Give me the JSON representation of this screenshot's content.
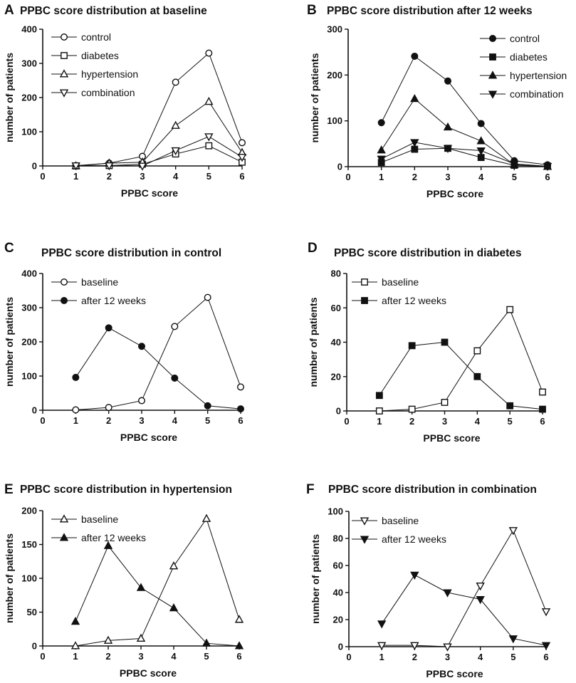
{
  "chart_data": [
    {
      "panel": "A",
      "type": "line",
      "title": "PPBC score distribution at baseline",
      "xlabel": "PPBC score",
      "ylabel": "number of patients",
      "xlim": [
        0,
        6
      ],
      "ylim": [
        0,
        400
      ],
      "xticks": [
        0,
        1,
        2,
        3,
        4,
        5,
        6
      ],
      "yticks": [
        0,
        100,
        200,
        300,
        400
      ],
      "x": [
        1,
        2,
        3,
        4,
        5,
        6
      ],
      "legend_position": "top-left",
      "series": [
        {
          "name": "control",
          "marker": "circle-open",
          "values": [
            1,
            8,
            28,
            245,
            330,
            68
          ]
        },
        {
          "name": "diabetes",
          "marker": "square-open",
          "values": [
            0,
            1,
            5,
            35,
            59,
            11
          ]
        },
        {
          "name": "hypertension",
          "marker": "triangle-up-open",
          "values": [
            0,
            8,
            11,
            118,
            188,
            39
          ]
        },
        {
          "name": "combination",
          "marker": "triangle-down-open",
          "values": [
            1,
            1,
            0,
            45,
            86,
            26
          ]
        }
      ]
    },
    {
      "panel": "B",
      "type": "line",
      "title": "PPBC score distribution after 12 weeks",
      "xlabel": "PPBC score",
      "ylabel": "number of patients",
      "xlim": [
        0,
        6
      ],
      "ylim": [
        0,
        300
      ],
      "xticks": [
        0,
        1,
        2,
        3,
        4,
        5,
        6
      ],
      "yticks": [
        0,
        100,
        200,
        300
      ],
      "x": [
        1,
        2,
        3,
        4,
        5,
        6
      ],
      "legend_position": "top-right",
      "series": [
        {
          "name": "control",
          "marker": "circle-filled",
          "values": [
            96,
            241,
            187,
            94,
            13,
            4
          ]
        },
        {
          "name": "diabetes",
          "marker": "square-filled",
          "values": [
            9,
            38,
            40,
            20,
            3,
            1
          ]
        },
        {
          "name": "hypertension",
          "marker": "triangle-up-filled",
          "values": [
            36,
            148,
            86,
            56,
            4,
            0
          ]
        },
        {
          "name": "combination",
          "marker": "triangle-down-filled",
          "values": [
            17,
            53,
            40,
            35,
            6,
            1
          ]
        }
      ]
    },
    {
      "panel": "C",
      "type": "line",
      "title": "PPBC score distribution in control",
      "xlabel": "PPBC score",
      "ylabel": "number of patients",
      "xlim": [
        0,
        6
      ],
      "ylim": [
        0,
        400
      ],
      "xticks": [
        0,
        1,
        2,
        3,
        4,
        5,
        6
      ],
      "yticks": [
        0,
        100,
        200,
        300,
        400
      ],
      "x": [
        1,
        2,
        3,
        4,
        5,
        6
      ],
      "legend_position": "top-left",
      "series": [
        {
          "name": "baseline",
          "marker": "circle-open",
          "values": [
            1,
            8,
            28,
            245,
            330,
            68
          ]
        },
        {
          "name": "after 12 weeks",
          "marker": "circle-filled",
          "values": [
            96,
            241,
            187,
            94,
            13,
            4
          ]
        }
      ]
    },
    {
      "panel": "D",
      "type": "line",
      "title": "PPBC score distribution in diabetes",
      "xlabel": "PPBC score",
      "ylabel": "number of patients",
      "xlim": [
        0,
        6
      ],
      "ylim": [
        0,
        80
      ],
      "xticks": [
        0,
        1,
        2,
        3,
        4,
        5,
        6
      ],
      "yticks": [
        0,
        20,
        40,
        60,
        80
      ],
      "x": [
        1,
        2,
        3,
        4,
        5,
        6
      ],
      "legend_position": "top-left",
      "series": [
        {
          "name": "baseline",
          "marker": "square-open",
          "values": [
            0,
            1,
            5,
            35,
            59,
            11
          ]
        },
        {
          "name": "after 12 weeks",
          "marker": "square-filled",
          "values": [
            9,
            38,
            40,
            20,
            3,
            1
          ]
        }
      ]
    },
    {
      "panel": "E",
      "type": "line",
      "title": "PPBC score distribution in hypertension",
      "xlabel": "PPBC score",
      "ylabel": "number of patients",
      "xlim": [
        0,
        6
      ],
      "ylim": [
        0,
        200
      ],
      "xticks": [
        0,
        1,
        2,
        3,
        4,
        5,
        6
      ],
      "yticks": [
        0,
        50,
        100,
        150,
        200
      ],
      "x": [
        1,
        2,
        3,
        4,
        5,
        6
      ],
      "legend_position": "top-left",
      "series": [
        {
          "name": "baseline",
          "marker": "triangle-up-open",
          "values": [
            0,
            8,
            11,
            118,
            188,
            39
          ]
        },
        {
          "name": "after 12 weeks",
          "marker": "triangle-up-filled",
          "values": [
            36,
            148,
            86,
            56,
            4,
            0
          ]
        }
      ]
    },
    {
      "panel": "F",
      "type": "line",
      "title": "PPBC score distribution in combination",
      "xlabel": "PPBC score",
      "ylabel": "number of patients",
      "xlim": [
        0,
        6
      ],
      "ylim": [
        0,
        100
      ],
      "xticks": [
        0,
        1,
        2,
        3,
        4,
        5,
        6
      ],
      "yticks": [
        0,
        20,
        40,
        60,
        80,
        100
      ],
      "x": [
        1,
        2,
        3,
        4,
        5,
        6
      ],
      "legend_position": "top-left",
      "series": [
        {
          "name": "baseline",
          "marker": "triangle-down-open",
          "values": [
            1,
            1,
            0,
            45,
            86,
            26
          ]
        },
        {
          "name": "after 12 weeks",
          "marker": "triangle-down-filled",
          "values": [
            17,
            53,
            40,
            35,
            6,
            1
          ]
        }
      ]
    }
  ]
}
